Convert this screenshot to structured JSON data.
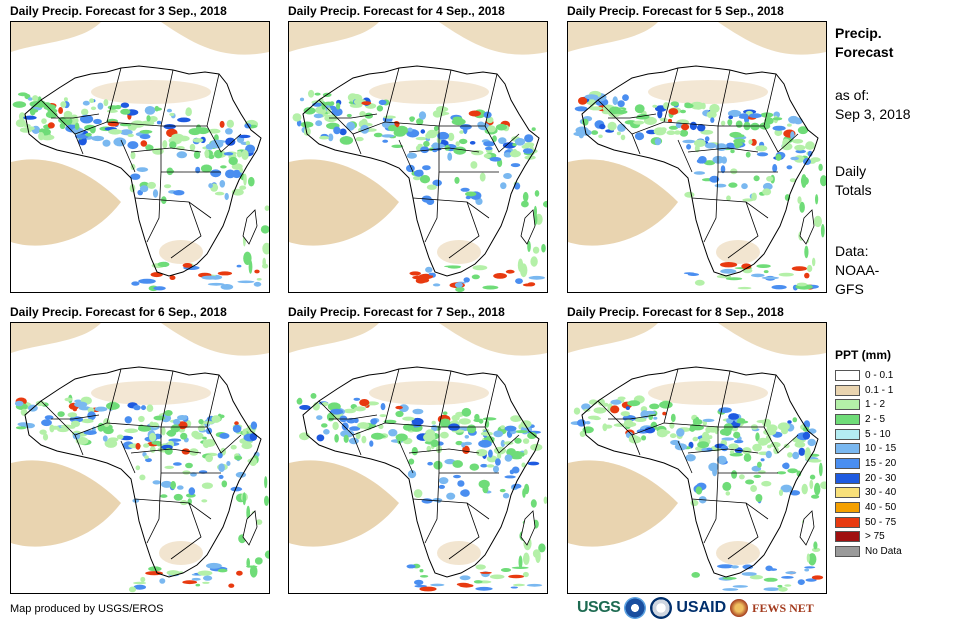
{
  "panels": [
    {
      "title": "Daily Precip. Forecast for 3 Sep., 2018"
    },
    {
      "title": "Daily Precip. Forecast for 4 Sep., 2018"
    },
    {
      "title": "Daily Precip. Forecast for 5 Sep., 2018"
    },
    {
      "title": "Daily Precip. Forecast for 6 Sep., 2018"
    },
    {
      "title": "Daily Precip. Forecast for 7 Sep., 2018"
    },
    {
      "title": "Daily Precip. Forecast for 8 Sep., 2018"
    }
  ],
  "side": {
    "title_line1": "Precip.",
    "title_line2": "Forecast",
    "asof_line1": "as of:",
    "asof_line2": "Sep 3, 2018",
    "totals_line1": "Daily",
    "totals_line2": "Totals",
    "data_line1": "Data:",
    "data_line2": "NOAA-",
    "data_line3": "GFS"
  },
  "legend": {
    "title": "PPT (mm)",
    "items": [
      {
        "label": "0 - 0.1",
        "color": "#ffffff"
      },
      {
        "label": "0.1 - 1",
        "color": "#e9d4b0"
      },
      {
        "label": "1 - 2",
        "color": "#b4f0a8"
      },
      {
        "label": "2 - 5",
        "color": "#6fdc78"
      },
      {
        "label": "5 - 10",
        "color": "#b4ecf2"
      },
      {
        "label": "10 - 15",
        "color": "#7ab8f0"
      },
      {
        "label": "15 - 20",
        "color": "#4a8ef0"
      },
      {
        "label": "20 - 30",
        "color": "#1e5ae0"
      },
      {
        "label": "30 - 40",
        "color": "#f8e07a"
      },
      {
        "label": "40 - 50",
        "color": "#f4a000"
      },
      {
        "label": "50 - 75",
        "color": "#e83a10"
      },
      {
        "label": "> 75",
        "color": "#a01010"
      },
      {
        "label": "No Data",
        "color": "#9a9a9a"
      }
    ]
  },
  "footer": {
    "credit": "Map produced by USGS/EROS",
    "logo_usgs": "USGS",
    "logo_usaid": "USAID",
    "logo_fews": "FEWS NET"
  }
}
